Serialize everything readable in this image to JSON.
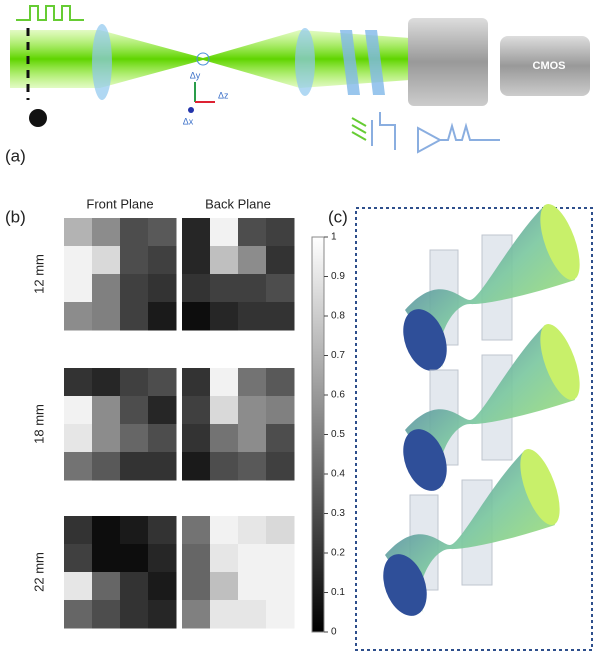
{
  "panel_labels": [
    "(a)",
    "(b)",
    "(c)"
  ],
  "setup": {
    "camera": "CMOS",
    "axes": [
      "Δy",
      "Δz",
      "Δx"
    ]
  },
  "heatmaps": {
    "columns": [
      "Front Plane",
      "Back Plane"
    ],
    "rows": [
      {
        "label": "12 mm",
        "front": [
          [
            0.7,
            0.55,
            0.3,
            0.35
          ],
          [
            0.95,
            0.85,
            0.3,
            0.25
          ],
          [
            0.95,
            0.5,
            0.25,
            0.2
          ],
          [
            0.55,
            0.5,
            0.25,
            0.1
          ]
        ],
        "back": [
          [
            0.15,
            0.95,
            0.3,
            0.25
          ],
          [
            0.15,
            0.75,
            0.55,
            0.2
          ],
          [
            0.2,
            0.25,
            0.25,
            0.3
          ],
          [
            0.05,
            0.15,
            0.2,
            0.2
          ]
        ]
      },
      {
        "label": "18 mm",
        "front": [
          [
            0.2,
            0.15,
            0.25,
            0.3
          ],
          [
            0.95,
            0.55,
            0.3,
            0.15
          ],
          [
            0.9,
            0.55,
            0.4,
            0.3
          ],
          [
            0.45,
            0.35,
            0.2,
            0.2
          ]
        ],
        "back": [
          [
            0.2,
            0.95,
            0.45,
            0.35
          ],
          [
            0.25,
            0.85,
            0.55,
            0.5
          ],
          [
            0.2,
            0.45,
            0.55,
            0.3
          ],
          [
            0.1,
            0.3,
            0.35,
            0.25
          ]
        ]
      },
      {
        "label": "22 mm",
        "front": [
          [
            0.2,
            0.05,
            0.1,
            0.2
          ],
          [
            0.25,
            0.05,
            0.05,
            0.15
          ],
          [
            0.9,
            0.4,
            0.2,
            0.1
          ],
          [
            0.4,
            0.3,
            0.2,
            0.15
          ]
        ],
        "back": [
          [
            0.45,
            0.95,
            0.9,
            0.85
          ],
          [
            0.4,
            0.9,
            0.95,
            0.95
          ],
          [
            0.4,
            0.75,
            0.95,
            0.95
          ],
          [
            0.5,
            0.9,
            0.9,
            0.95
          ]
        ]
      }
    ]
  },
  "colorbar": {
    "lim": [
      0,
      1
    ],
    "ticks": [
      0,
      0.1,
      0.2,
      0.3,
      0.4,
      0.5,
      0.6,
      0.7,
      0.8,
      0.9,
      1
    ]
  }
}
